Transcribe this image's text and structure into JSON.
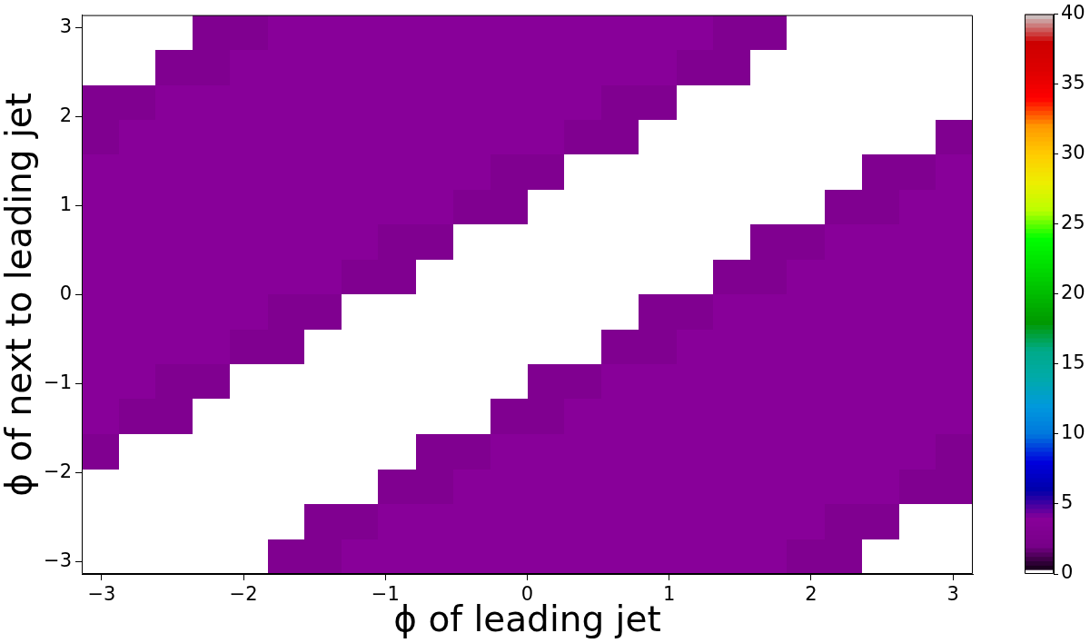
{
  "chart_data": {
    "type": "heatmap",
    "xlabel": "ϕ of leading jet",
    "ylabel": "ϕ of next to leading jet",
    "x": [
      -3.01,
      -2.75,
      -2.49,
      -2.23,
      -1.96,
      -1.7,
      -1.44,
      -1.18,
      -0.92,
      -0.65,
      -0.39,
      -0.13,
      0.13,
      0.39,
      0.65,
      0.92,
      1.18,
      1.44,
      1.7,
      1.96,
      2.23,
      2.49,
      2.75,
      3.01
    ],
    "y": [
      2.95,
      2.55,
      2.16,
      1.77,
      1.37,
      0.98,
      0.59,
      0.2,
      -0.2,
      -0.59,
      -0.98,
      -1.37,
      -1.77,
      -2.16,
      -2.55,
      -2.95
    ],
    "cells": [
      [
        0,
        0,
        0,
        3,
        3,
        4,
        4,
        4,
        4,
        4,
        4,
        4,
        4,
        4,
        4,
        4,
        4,
        3,
        3,
        0,
        0,
        0,
        0,
        0
      ],
      [
        0,
        0,
        3,
        3,
        4,
        4,
        4,
        4,
        4,
        4,
        4,
        4,
        4,
        4,
        4,
        4,
        3,
        3,
        0,
        0,
        0,
        0,
        0,
        0
      ],
      [
        3,
        3,
        4,
        4,
        4,
        4,
        4,
        4,
        4,
        4,
        4,
        4,
        4,
        4,
        3,
        3,
        0,
        0,
        0,
        0,
        0,
        0,
        0,
        0
      ],
      [
        3,
        4,
        4,
        4,
        4,
        4,
        4,
        4,
        4,
        4,
        4,
        4,
        4,
        3,
        3,
        0,
        0,
        0,
        0,
        0,
        0,
        0,
        0,
        3
      ],
      [
        4,
        4,
        4,
        4,
        4,
        4,
        4,
        4,
        4,
        4,
        4,
        3,
        3,
        0,
        0,
        0,
        0,
        0,
        0,
        0,
        0,
        3,
        3,
        4
      ],
      [
        4,
        4,
        4,
        4,
        4,
        4,
        4,
        4,
        4,
        4,
        3,
        3,
        0,
        0,
        0,
        0,
        0,
        0,
        0,
        0,
        3,
        3,
        4,
        4
      ],
      [
        4,
        4,
        4,
        4,
        4,
        4,
        4,
        4,
        3,
        3,
        0,
        0,
        0,
        0,
        0,
        0,
        0,
        0,
        3,
        3,
        4,
        4,
        4,
        4
      ],
      [
        4,
        4,
        4,
        4,
        4,
        4,
        4,
        3,
        3,
        0,
        0,
        0,
        0,
        0,
        0,
        0,
        0,
        3,
        3,
        4,
        4,
        4,
        4,
        4
      ],
      [
        4,
        4,
        4,
        4,
        4,
        3,
        3,
        0,
        0,
        0,
        0,
        0,
        0,
        0,
        0,
        3,
        3,
        4,
        4,
        4,
        4,
        4,
        4,
        4
      ],
      [
        4,
        4,
        4,
        4,
        3,
        3,
        0,
        0,
        0,
        0,
        0,
        0,
        0,
        0,
        3,
        3,
        4,
        4,
        4,
        4,
        4,
        4,
        4,
        4
      ],
      [
        4,
        4,
        3,
        3,
        0,
        0,
        0,
        0,
        0,
        0,
        0,
        0,
        3,
        3,
        4,
        4,
        4,
        4,
        4,
        4,
        4,
        4,
        4,
        4
      ],
      [
        4,
        3,
        3,
        0,
        0,
        0,
        0,
        0,
        0,
        0,
        0,
        3,
        3,
        4,
        4,
        4,
        4,
        4,
        4,
        4,
        4,
        4,
        4,
        4
      ],
      [
        3,
        0,
        0,
        0,
        0,
        0,
        0,
        0,
        0,
        3,
        3,
        4,
        4,
        4,
        4,
        4,
        4,
        4,
        4,
        4,
        4,
        4,
        4,
        3
      ],
      [
        0,
        0,
        0,
        0,
        0,
        0,
        0,
        0,
        3,
        3,
        4,
        4,
        4,
        4,
        4,
        4,
        4,
        4,
        4,
        4,
        4,
        4,
        3,
        3
      ],
      [
        0,
        0,
        0,
        0,
        0,
        0,
        3,
        3,
        4,
        4,
        4,
        4,
        4,
        4,
        4,
        4,
        4,
        4,
        4,
        4,
        3,
        3,
        0,
        0
      ],
      [
        0,
        0,
        0,
        0,
        0,
        3,
        3,
        4,
        4,
        4,
        4,
        4,
        4,
        4,
        4,
        4,
        4,
        4,
        4,
        3,
        3,
        0,
        0,
        0
      ]
    ],
    "xlim": [
      -3.14,
      3.14
    ],
    "ylim": [
      -3.14,
      3.14
    ],
    "xticks": [
      -3,
      -2,
      -1,
      0,
      1,
      2,
      3
    ],
    "yticks": [
      -3,
      -2,
      -1,
      0,
      1,
      2,
      3
    ],
    "clim": [
      0,
      40
    ],
    "cticks": [
      0,
      5,
      10,
      15,
      20,
      25,
      30,
      35,
      40
    ]
  }
}
